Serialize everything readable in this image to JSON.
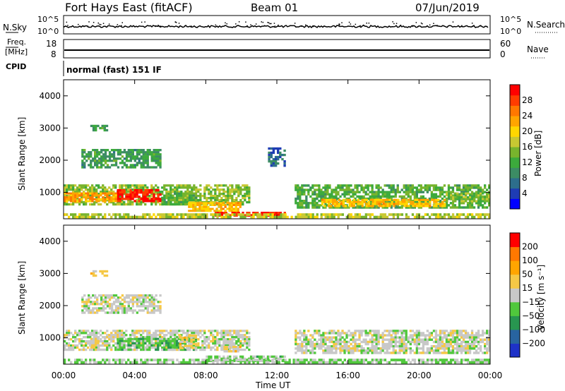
{
  "header": {
    "title": "Fort Hays East (fitACF)",
    "beam": "Beam 01",
    "date": "07/Jun/2019"
  },
  "noise_panel": {
    "left_label": "N.Sky",
    "right_label": "N.Search",
    "left_ticks": [
      "10^5",
      "10^0"
    ],
    "right_ticks": [
      "10^5",
      "10^0"
    ]
  },
  "freq_panel": {
    "left_label_1": "Freq.",
    "left_label_2": "[MHz]",
    "left_ticks": [
      "18",
      "8"
    ],
    "right_label": "Nave",
    "right_ticks": [
      "60",
      "0"
    ]
  },
  "cpid_panel": {
    "label": "CPID",
    "text": "normal (fast) 151 IF"
  },
  "power_panel": {
    "ylabel": "Slant Range [km]",
    "yticks": [
      "4000",
      "3000",
      "2000",
      "1000"
    ],
    "colorbar_label": "Power [dB]",
    "colorbar_ticks": [
      "28",
      "24",
      "20",
      "16",
      "12",
      "8",
      "4"
    ],
    "colors": [
      "#0000ff",
      "#1e3cb4",
      "#2d6e8c",
      "#3c8c64",
      "#3caa3c",
      "#78b42d",
      "#c8c832",
      "#ffd700",
      "#ffa500",
      "#ff7800",
      "#ff3c00",
      "#ff0000"
    ]
  },
  "velocity_panel": {
    "ylabel": "Slant Range [km]",
    "yticks": [
      "4000",
      "3000",
      "2000",
      "1000"
    ],
    "colorbar_label": "Velocity [m s⁻¹]",
    "colorbar_ticks": [
      "200",
      "100",
      "50",
      "15",
      "−15",
      "−50",
      "−100",
      "−200"
    ],
    "colors": [
      "#1e32c8",
      "#2864a0",
      "#289650",
      "#50c83c",
      "#c8c8c8",
      "#f5c846",
      "#ffa500",
      "#ff7800",
      "#ff0000"
    ]
  },
  "x_axis": {
    "label": "Time UT",
    "ticks": [
      "00:00",
      "04:00",
      "08:00",
      "12:00",
      "16:00",
      "20:00",
      "00:00"
    ]
  },
  "chart_data": [
    {
      "type": "heatmap",
      "title": "Power [dB]",
      "xlabel": "Time UT",
      "ylabel": "Slant Range [km]",
      "xlim_hours": [
        0,
        24
      ],
      "ylim": [
        180,
        4500
      ],
      "clim": [
        0,
        30
      ],
      "regions": [
        {
          "t0": 0.0,
          "t1": 10.5,
          "r0": 600,
          "r1": 1250,
          "value": 14
        },
        {
          "t0": 3.0,
          "t1": 5.5,
          "r0": 700,
          "r1": 1100,
          "value": 28
        },
        {
          "t0": 0.0,
          "t1": 3.0,
          "r0": 700,
          "r1": 1000,
          "value": 22
        },
        {
          "t0": 5.5,
          "t1": 7.5,
          "r0": 600,
          "r1": 1000,
          "value": 12
        },
        {
          "t0": 7.0,
          "t1": 10.0,
          "r0": 400,
          "r1": 700,
          "value": 20
        },
        {
          "t0": 8.5,
          "t1": 12.5,
          "r0": 250,
          "r1": 400,
          "value": 28
        },
        {
          "t0": 13.0,
          "t1": 24.0,
          "r0": 500,
          "r1": 1250,
          "value": 12
        },
        {
          "t0": 14.5,
          "t1": 21.5,
          "r0": 550,
          "r1": 800,
          "value": 20
        },
        {
          "t0": 21.5,
          "t1": 24.0,
          "r0": 700,
          "r1": 1000,
          "value": 14
        },
        {
          "t0": 1.0,
          "t1": 5.5,
          "r0": 1750,
          "r1": 2350,
          "value": 10
        },
        {
          "t0": 1.5,
          "t1": 2.5,
          "r0": 2900,
          "r1": 3100,
          "value": 10
        },
        {
          "t0": 11.5,
          "t1": 12.5,
          "r0": 1800,
          "r1": 2400,
          "value": 6
        },
        {
          "t0": 0.0,
          "t1": 24.0,
          "r0": 200,
          "r1": 350,
          "value": 16
        }
      ]
    },
    {
      "type": "heatmap",
      "title": "Velocity [m s⁻¹]",
      "xlabel": "Time UT",
      "ylabel": "Slant Range [km]",
      "xlim_hours": [
        0,
        24
      ],
      "ylim": [
        180,
        4500
      ],
      "clim": [
        -250,
        250
      ],
      "regions": [
        {
          "t0": 0.0,
          "t1": 10.5,
          "r0": 600,
          "r1": 1250,
          "value": 0
        },
        {
          "t0": 3.0,
          "t1": 7.5,
          "r0": 600,
          "r1": 1000,
          "value": -60
        },
        {
          "t0": 6.5,
          "t1": 7.5,
          "r0": 650,
          "r1": 1100,
          "value": 40
        },
        {
          "t0": 1.5,
          "t1": 2.0,
          "r0": 600,
          "r1": 1000,
          "value": 40
        },
        {
          "t0": 9.0,
          "t1": 10.0,
          "r0": 550,
          "r1": 750,
          "value": 40
        },
        {
          "t0": 8.0,
          "t1": 12.5,
          "r0": 250,
          "r1": 450,
          "value": -40
        },
        {
          "t0": 13.0,
          "t1": 24.0,
          "r0": 500,
          "r1": 1250,
          "value": 0
        },
        {
          "t0": 1.0,
          "t1": 5.5,
          "r0": 1750,
          "r1": 2350,
          "value": 0
        },
        {
          "t0": 1.5,
          "t1": 2.5,
          "r0": 2900,
          "r1": 3100,
          "value": 40
        },
        {
          "t0": 0.0,
          "t1": 24.0,
          "r0": 200,
          "r1": 350,
          "value": -30
        }
      ]
    }
  ]
}
